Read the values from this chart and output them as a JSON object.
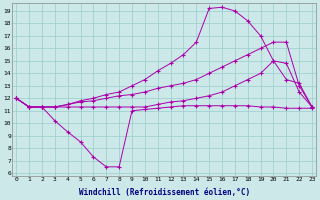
{
  "xlabel": "Windchill (Refroidissement éolien,°C)",
  "background_color": "#cce8e8",
  "grid_color": "#99cccc",
  "line_color": "#aa00aa",
  "x": [
    0,
    1,
    2,
    3,
    4,
    5,
    6,
    7,
    8,
    9,
    10,
    11,
    12,
    13,
    14,
    15,
    16,
    17,
    18,
    19,
    20,
    21,
    22,
    23
  ],
  "line_dip": [
    12,
    11.3,
    11.3,
    10.2,
    9.3,
    8.5,
    7.3,
    6.5,
    6.5,
    11.0,
    11.1,
    11.2,
    11.3,
    11.4,
    11.4,
    11.4,
    11.4,
    11.4,
    11.4,
    11.3,
    11.3,
    11.2,
    11.2,
    11.2
  ],
  "line_peak": [
    12,
    11.3,
    11.3,
    11.3,
    11.5,
    11.8,
    12.0,
    12.3,
    12.5,
    13.0,
    13.5,
    14.2,
    14.8,
    15.5,
    16.5,
    19.2,
    19.3,
    19.0,
    18.2,
    17.0,
    15.0,
    13.5,
    13.2,
    11.3
  ],
  "line_upper": [
    12,
    11.3,
    11.3,
    11.3,
    11.5,
    11.7,
    11.8,
    12.0,
    12.2,
    12.3,
    12.5,
    12.8,
    13.0,
    13.2,
    13.5,
    14.0,
    14.5,
    15.0,
    15.5,
    16.0,
    16.5,
    16.5,
    13.0,
    11.3
  ],
  "line_flat": [
    12,
    11.3,
    11.3,
    11.3,
    11.3,
    11.3,
    11.3,
    11.3,
    11.3,
    11.3,
    11.3,
    11.5,
    11.7,
    11.8,
    12.0,
    12.2,
    12.5,
    13.0,
    13.5,
    14.0,
    15.0,
    14.8,
    12.5,
    11.3
  ],
  "yticks": [
    6,
    7,
    8,
    9,
    10,
    11,
    12,
    13,
    14,
    15,
    16,
    17,
    18,
    19
  ],
  "xticks": [
    0,
    1,
    2,
    3,
    4,
    5,
    6,
    7,
    8,
    9,
    10,
    11,
    12,
    13,
    14,
    15,
    16,
    17,
    18,
    19,
    20,
    21,
    22,
    23
  ],
  "ylim_lo": 5.8,
  "ylim_hi": 19.6,
  "xlim_lo": -0.3,
  "xlim_hi": 23.3
}
